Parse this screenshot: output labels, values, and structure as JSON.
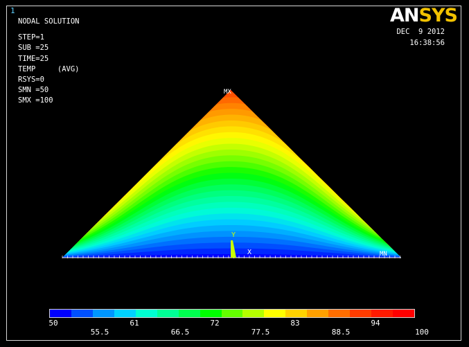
{
  "window": {
    "number": "1"
  },
  "header": {
    "title": "NODAL SOLUTION",
    "lines": [
      "STEP=1",
      "SUB =25",
      "TIME=25",
      "TEMP     (AVG)",
      "RSYS=0",
      "SMN =50",
      "SMX =100"
    ]
  },
  "logo": {
    "part1": "AN",
    "part2": "SYS"
  },
  "timestamp": {
    "date": "DEC  9 2012",
    "time": "16:38:56"
  },
  "plot": {
    "max_marker": "MX",
    "min_marker": "MN",
    "axis_x": "X",
    "axis_y": "Y"
  },
  "legend": {
    "ticks_top": [
      "50",
      "61",
      "72",
      "83",
      "94"
    ],
    "ticks_bottom": [
      "55.5",
      "66.5",
      "77.5",
      "88.5",
      "100"
    ],
    "colors": [
      "#0000ff",
      "#0050ff",
      "#0096ff",
      "#00d2ff",
      "#00ffd2",
      "#00ff96",
      "#00ff50",
      "#00ff00",
      "#64ff00",
      "#b4ff00",
      "#ffff00",
      "#ffd200",
      "#ffa000",
      "#ff6e00",
      "#ff3c00",
      "#ff1a00",
      "#ff0000"
    ]
  },
  "colors": {
    "background": "#000000",
    "logo_accent": "#f2c200",
    "frame": "#d8d8d8"
  }
}
